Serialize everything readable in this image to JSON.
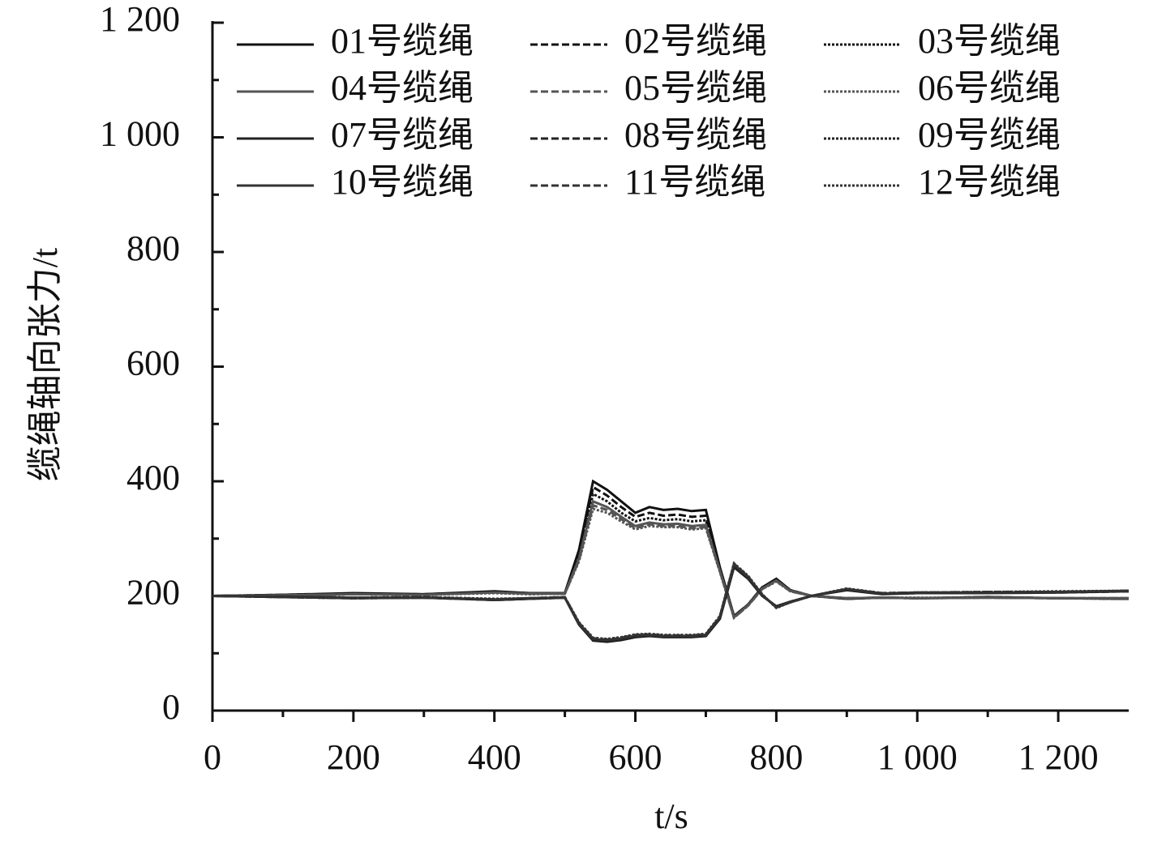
{
  "chart_data": {
    "type": "line",
    "x_label": "t/s",
    "y_label": "缆绳轴向张力/t",
    "x": [
      0,
      100,
      200,
      300,
      400,
      450,
      500,
      520,
      540,
      560,
      580,
      600,
      620,
      640,
      660,
      680,
      700,
      720,
      740,
      760,
      780,
      800,
      820,
      850,
      900,
      950,
      1000,
      1100,
      1200,
      1300
    ],
    "xlim": [
      0,
      1300
    ],
    "xticks": [
      0,
      200,
      400,
      600,
      800,
      {
        "value": 1000,
        "label": "1 000"
      },
      {
        "value": 1200,
        "label": "1 200"
      }
    ],
    "ylim": [
      0,
      1200
    ],
    "yticks": [
      0,
      200,
      400,
      600,
      800,
      {
        "value": 1000,
        "label": "1 000"
      },
      {
        "value": 1200,
        "label": "1 200"
      }
    ],
    "series": [
      {
        "name": "01号缆绳",
        "color": "#111111",
        "style": "solid",
        "values": [
          200,
          202,
          205,
          203,
          208,
          205,
          205,
          280,
          400,
          385,
          365,
          345,
          355,
          350,
          352,
          348,
          350,
          250,
          165,
          185,
          215,
          230,
          210,
          200,
          195,
          197,
          196,
          198,
          196,
          195
        ]
      },
      {
        "name": "02号缆绳",
        "color": "#111111",
        "style": "dashed",
        "values": [
          200,
          202,
          204,
          203,
          207,
          205,
          205,
          275,
          390,
          375,
          355,
          338,
          345,
          340,
          342,
          338,
          340,
          248,
          165,
          185,
          215,
          229,
          210,
          200,
          195,
          197,
          196,
          198,
          196,
          195
        ]
      },
      {
        "name": "03号缆绳",
        "color": "#111111",
        "style": "dotted",
        "values": [
          200,
          201,
          204,
          202,
          207,
          204,
          204,
          270,
          378,
          365,
          345,
          330,
          336,
          332,
          334,
          330,
          332,
          246,
          164,
          184,
          214,
          228,
          209,
          200,
          196,
          197,
          196,
          197,
          196,
          195
        ]
      },
      {
        "name": "04号缆绳",
        "color": "#555555",
        "style": "solid",
        "values": [
          200,
          201,
          203,
          202,
          206,
          204,
          204,
          265,
          365,
          355,
          338,
          322,
          328,
          325,
          326,
          322,
          324,
          244,
          163,
          184,
          213,
          227,
          209,
          200,
          196,
          197,
          196,
          197,
          196,
          196
        ]
      },
      {
        "name": "05号缆绳",
        "color": "#555555",
        "style": "dashed",
        "values": [
          200,
          201,
          203,
          202,
          206,
          204,
          204,
          262,
          358,
          350,
          334,
          318,
          325,
          322,
          322,
          318,
          320,
          243,
          162,
          183,
          212,
          226,
          208,
          200,
          196,
          197,
          196,
          197,
          196,
          196
        ]
      },
      {
        "name": "06号缆绳",
        "color": "#555555",
        "style": "dotted",
        "values": [
          200,
          201,
          203,
          202,
          205,
          203,
          204,
          260,
          352,
          345,
          330,
          316,
          322,
          320,
          320,
          316,
          318,
          242,
          162,
          183,
          212,
          225,
          208,
          200,
          196,
          197,
          197,
          197,
          196,
          196
        ]
      },
      {
        "name": "07号缆绳",
        "color": "#222222",
        "style": "solid",
        "values": [
          200,
          198,
          196,
          197,
          193,
          195,
          197,
          150,
          122,
          120,
          123,
          128,
          130,
          128,
          128,
          128,
          130,
          160,
          250,
          230,
          200,
          182,
          190,
          200,
          210,
          203,
          205,
          205,
          206,
          208
        ]
      },
      {
        "name": "08号缆绳",
        "color": "#222222",
        "style": "dashed",
        "values": [
          200,
          198,
          196,
          197,
          193,
          195,
          197,
          151,
          123,
          121,
          124,
          129,
          131,
          129,
          129,
          129,
          131,
          161,
          252,
          231,
          201,
          181,
          190,
          200,
          211,
          204,
          205,
          206,
          206,
          208
        ]
      },
      {
        "name": "09号缆绳",
        "color": "#222222",
        "style": "dotted",
        "values": [
          200,
          198,
          196,
          197,
          194,
          195,
          197,
          152,
          124,
          122,
          125,
          130,
          132,
          130,
          130,
          130,
          132,
          162,
          254,
          232,
          201,
          181,
          190,
          200,
          211,
          204,
          205,
          206,
          207,
          208
        ]
      },
      {
        "name": "10号缆绳",
        "color": "#333333",
        "style": "solid",
        "values": [
          200,
          199,
          197,
          197,
          194,
          196,
          197,
          152,
          125,
          123,
          126,
          131,
          132,
          130,
          130,
          130,
          132,
          163,
          255,
          233,
          202,
          180,
          189,
          200,
          212,
          204,
          206,
          206,
          207,
          209
        ]
      },
      {
        "name": "11号缆绳",
        "color": "#333333",
        "style": "dashed",
        "values": [
          200,
          199,
          197,
          198,
          194,
          196,
          198,
          153,
          126,
          124,
          127,
          132,
          133,
          131,
          131,
          131,
          133,
          164,
          256,
          234,
          202,
          180,
          189,
          200,
          212,
          205,
          206,
          207,
          207,
          209
        ]
      },
      {
        "name": "12号缆绳",
        "color": "#333333",
        "style": "dotted",
        "values": [
          200,
          199,
          197,
          198,
          195,
          196,
          198,
          154,
          127,
          125,
          128,
          133,
          134,
          132,
          132,
          132,
          134,
          165,
          257,
          235,
          203,
          179,
          189,
          200,
          213,
          205,
          206,
          207,
          208,
          209
        ]
      }
    ]
  }
}
